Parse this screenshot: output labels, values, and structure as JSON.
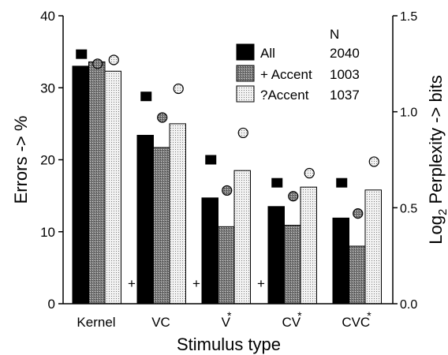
{
  "chart_data": {
    "type": "bar",
    "categories": [
      "Kernel",
      "VC",
      "V*",
      "CV*",
      "CVC*"
    ],
    "category_labels": [
      {
        "base": "Kernel",
        "star": ""
      },
      {
        "base": "VC",
        "star": ""
      },
      {
        "base": "V",
        "star": "*"
      },
      {
        "base": "CV",
        "star": "*"
      },
      {
        "base": "CVC",
        "star": "*"
      }
    ],
    "xlabel": "Stimulus type",
    "ylabel": "Errors -> %",
    "y2label": {
      "pre": "Log",
      "sub": "2",
      "post": " Perplexity -> bits"
    },
    "ylim": [
      0,
      40
    ],
    "y2lim": [
      0,
      1.5
    ],
    "yticks": [
      "0",
      "10",
      "20",
      "30",
      "40"
    ],
    "y2ticks": [
      "0.0",
      "0.5",
      "1.0",
      "1.5"
    ],
    "legend": {
      "header": "N",
      "position": "top-right",
      "entries": [
        {
          "name": "All",
          "count": "2040"
        },
        {
          "name": "+ Accent",
          "count": "1003"
        },
        {
          "name": "?Accent",
          "count": "1037"
        }
      ]
    },
    "series": [
      {
        "name": "All",
        "pattern": "black",
        "values": [
          33,
          23.4,
          14.7,
          13.5,
          11.9
        ],
        "perplexity": [
          1.3,
          1.08,
          0.75,
          0.63,
          0.63
        ]
      },
      {
        "name": "+ Accent",
        "pattern": "hatched",
        "values": [
          33.6,
          21.7,
          10.7,
          10.9,
          8.0
        ],
        "perplexity": [
          1.25,
          0.97,
          0.59,
          0.56,
          0.47
        ]
      },
      {
        "name": "?Accent",
        "pattern": "dotted",
        "values": [
          32.3,
          25.0,
          18.5,
          16.2,
          15.8
        ],
        "perplexity": [
          1.27,
          1.12,
          0.89,
          0.68,
          0.74
        ]
      }
    ],
    "plus_markers": [
      "+",
      "+",
      "+"
    ]
  }
}
